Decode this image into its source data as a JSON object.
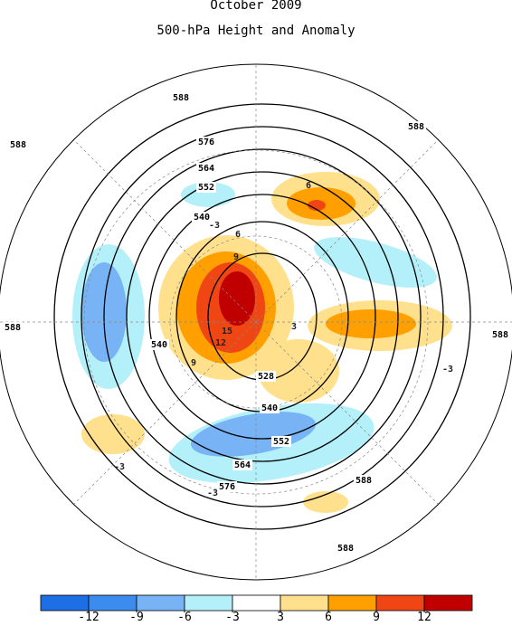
{
  "map": {
    "title": "October 2009",
    "subtitle": "500-hPa Height and Anomaly",
    "height_labels": [
      588,
      588,
      588,
      576,
      564,
      552,
      540,
      588,
      588,
      540,
      528,
      540,
      552,
      564,
      576,
      588,
      588
    ],
    "anomaly_labels": [
      15,
      12,
      9,
      6,
      9,
      -3,
      6,
      -3,
      -3,
      -3,
      3
    ],
    "colorbar": {
      "colors": [
        "#1e6ee6",
        "#3c8cf0",
        "#78b4f5",
        "#b4f0fa",
        "#ffffff",
        "#ffe08c",
        "#ffa000",
        "#f04614",
        "#c00000"
      ],
      "ticks": [
        -12,
        -9,
        -6,
        -3,
        3,
        6,
        9,
        12
      ]
    }
  }
}
